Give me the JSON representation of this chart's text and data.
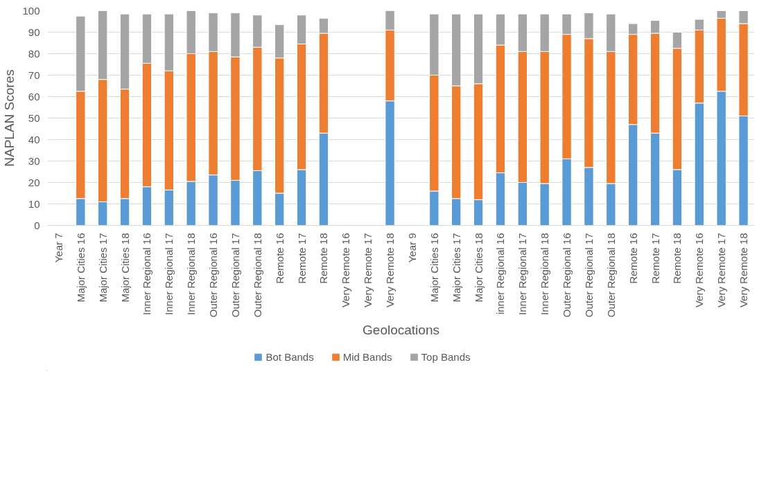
{
  "chart_data": {
    "type": "bar",
    "stacked": true,
    "xlabel": "Geolocations",
    "ylabel": "NAPLAN Scores",
    "categories": [
      "Year 7",
      "Major Cities 16",
      "Major Cities 17",
      "Major Cities 18",
      "Inner Regional 16",
      "Inner Regional 17",
      "Inner Regional 18",
      "Outer Regional 16",
      "Outer Regional 17",
      "Outer Regional 18",
      "Remote 16",
      "Remote 17",
      "Remote 18",
      "Very Remote 16",
      "Very Remote 17",
      "Very Remote 18",
      "Year 9",
      "Major Cities 16",
      "Major Cities 17",
      "Major Cities 18",
      "inner Regional 16",
      "Inner Regional 17",
      "Inner Regional 18",
      "Outer Regional 16",
      "Outer Regional 17",
      "Outer Regional 18",
      "Remote 16",
      "Remote 17",
      "Remote 18",
      "Very Remote 16",
      "Very Remote 17",
      "Very Remote 18"
    ],
    "series": [
      {
        "name": "Bot Bands",
        "color": "#5b9bd5",
        "values": [
          null,
          12.5,
          11,
          12.5,
          18,
          16.5,
          20.5,
          23.5,
          21,
          25.5,
          15,
          26,
          43,
          null,
          null,
          58,
          null,
          16,
          12.5,
          12,
          24.5,
          20,
          19.5,
          31,
          27,
          19.5,
          47,
          43,
          26,
          57,
          62.5,
          51
        ]
      },
      {
        "name": "Mid Bands",
        "color": "#ed7d31",
        "values": [
          null,
          50,
          57,
          51,
          57.5,
          55.5,
          59.5,
          57.5,
          57.5,
          57.5,
          63,
          58.5,
          46.5,
          null,
          null,
          33,
          null,
          54,
          52.5,
          54,
          59.5,
          61,
          61.5,
          58,
          60,
          61.5,
          42,
          46.5,
          56.5,
          34,
          34,
          43
        ]
      },
      {
        "name": "Top Bands",
        "color": "#a5a5a5",
        "values": [
          null,
          35,
          32,
          35,
          23,
          26.5,
          20,
          18,
          20.5,
          15,
          15.5,
          13.5,
          7,
          null,
          null,
          9,
          null,
          28.5,
          33.5,
          32.5,
          14.5,
          17.5,
          17.5,
          9.5,
          12,
          17.5,
          5,
          6,
          7.5,
          5,
          3.5,
          6
        ]
      }
    ],
    "ylim": [
      0,
      100
    ],
    "yticks": [
      0,
      10,
      20,
      30,
      40,
      50,
      60,
      70,
      80,
      90,
      100
    ],
    "grid": "y",
    "legend": "bottom"
  }
}
